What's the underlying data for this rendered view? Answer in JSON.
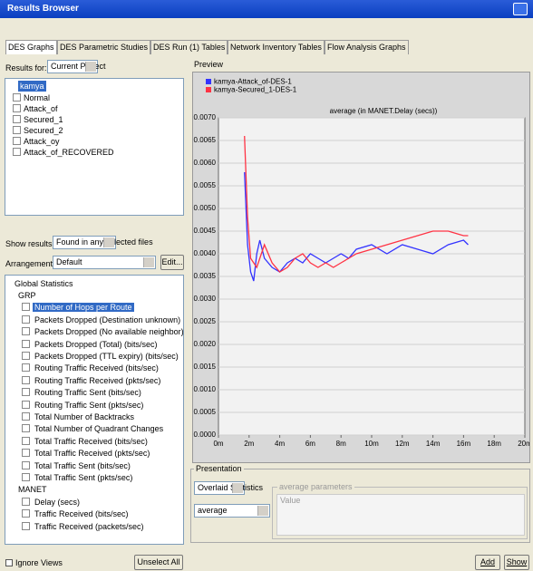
{
  "window": {
    "title": "Results Browser"
  },
  "tabs": [
    "DES Graphs",
    "DES Parametric Studies",
    "DES Run (1) Tables",
    "Network Inventory Tables",
    "Flow Analysis Graphs"
  ],
  "results_for": {
    "label": "Results for:",
    "value": "Current Project"
  },
  "projects": {
    "root": "kamya",
    "items": [
      "Normal",
      "Attack_of",
      "Secured_1",
      "Secured_2",
      "Attack_oy",
      "Attack_of_RECOVERED"
    ]
  },
  "show_results": {
    "label": "Show results:",
    "value": "Found in any selected files"
  },
  "arrangement": {
    "label": "Arrangement:",
    "value": "Default",
    "button": "Edit..."
  },
  "statistics": {
    "root": "Global Statistics",
    "groups": [
      {
        "name": "GRP",
        "items": [
          "Number of Hops per Route",
          "Packets Dropped (Destination unknown) (bits/sec)",
          "Packets Dropped (No available neighbor) (bits/sec)",
          "Packets Dropped (Total) (bits/sec)",
          "Packets Dropped (TTL expiry) (bits/sec)",
          "Routing Traffic Received (bits/sec)",
          "Routing Traffic Received (pkts/sec)",
          "Routing Traffic Sent (bits/sec)",
          "Routing Traffic Sent (pkts/sec)",
          "Total Number of Backtracks",
          "Total Number of Quadrant Changes",
          "Total Traffic Received (bits/sec)",
          "Total Traffic Received (pkts/sec)",
          "Total Traffic Sent (bits/sec)",
          "Total Traffic Sent (pkts/sec)"
        ]
      },
      {
        "name": "MANET",
        "items": [
          "Delay (secs)",
          "Traffic Received (bits/sec)",
          "Traffic Received (packets/sec)"
        ]
      }
    ]
  },
  "preview": {
    "label": "Preview"
  },
  "chart_data": {
    "type": "line",
    "title": "average (in MANET.Delay (secs))",
    "series": [
      {
        "name": "kamya-Attack_of-DES-1",
        "color": "#3333ff",
        "x": [
          1.7,
          1.9,
          2.1,
          2.3,
          2.5,
          2.7,
          3,
          3.5,
          4,
          4.5,
          5,
          5.5,
          6,
          6.5,
          7,
          7.5,
          8,
          8.5,
          9,
          10,
          11,
          12,
          13,
          14,
          15,
          16,
          16.3
        ],
        "values": [
          0.0058,
          0.0042,
          0.0036,
          0.0034,
          0.004,
          0.0043,
          0.0039,
          0.0037,
          0.0036,
          0.0038,
          0.0039,
          0.0038,
          0.004,
          0.0039,
          0.0038,
          0.0039,
          0.004,
          0.0039,
          0.0041,
          0.0042,
          0.004,
          0.0042,
          0.0041,
          0.004,
          0.0042,
          0.0043,
          0.0042
        ]
      },
      {
        "name": "kamya-Secured_1-DES-1",
        "color": "#ff3344",
        "x": [
          1.7,
          1.9,
          2.1,
          2.5,
          3,
          3.5,
          4,
          4.5,
          5,
          5.5,
          6,
          6.5,
          7,
          7.5,
          8,
          8.5,
          9,
          10,
          11,
          12,
          13,
          14,
          15,
          16,
          16.3
        ],
        "values": [
          0.0066,
          0.0048,
          0.0039,
          0.0037,
          0.0042,
          0.0038,
          0.0036,
          0.0037,
          0.0039,
          0.004,
          0.0038,
          0.0037,
          0.0038,
          0.0037,
          0.0038,
          0.0039,
          0.004,
          0.0041,
          0.0042,
          0.0043,
          0.0044,
          0.0045,
          0.0045,
          0.0044,
          0.0044
        ]
      }
    ],
    "xlim": [
      0,
      20
    ],
    "xticks": [
      {
        "value": 0,
        "label": "0m"
      },
      {
        "value": 2,
        "label": "2m"
      },
      {
        "value": 4,
        "label": "4m"
      },
      {
        "value": 6,
        "label": "6m"
      },
      {
        "value": 8,
        "label": "8m"
      },
      {
        "value": 10,
        "label": "10m"
      },
      {
        "value": 12,
        "label": "12m"
      },
      {
        "value": 14,
        "label": "14m"
      },
      {
        "value": 16,
        "label": "16m"
      },
      {
        "value": 18,
        "label": "18m"
      },
      {
        "value": 20,
        "label": "20m"
      }
    ],
    "ylim": [
      0,
      0.007
    ],
    "yticks": [
      {
        "value": 0,
        "label": "0.0000"
      },
      {
        "value": 0.0005,
        "label": "0.0005"
      },
      {
        "value": 0.001,
        "label": "0.0010"
      },
      {
        "value": 0.0015,
        "label": "0.0015"
      },
      {
        "value": 0.002,
        "label": "0.0020"
      },
      {
        "value": 0.0025,
        "label": "0.0025"
      },
      {
        "value": 0.003,
        "label": "0.0030"
      },
      {
        "value": 0.0035,
        "label": "0.0035"
      },
      {
        "value": 0.004,
        "label": "0.0040"
      },
      {
        "value": 0.0045,
        "label": "0.0045"
      },
      {
        "value": 0.005,
        "label": "0.0050"
      },
      {
        "value": 0.0055,
        "label": "0.0055"
      },
      {
        "value": 0.006,
        "label": "0.0060"
      },
      {
        "value": 0.0065,
        "label": "0.0065"
      },
      {
        "value": 0.007,
        "label": "0.0070"
      }
    ],
    "grid": true
  },
  "presentation": {
    "label": "Presentation",
    "mode": "Overlaid Statistics",
    "filter": "average",
    "parameters_label": "average parameters",
    "parameters_column": "Value"
  },
  "footer": {
    "checkbox": "Ignore Views",
    "unselect": "Unselect All",
    "add": "Add",
    "show": "Show"
  }
}
